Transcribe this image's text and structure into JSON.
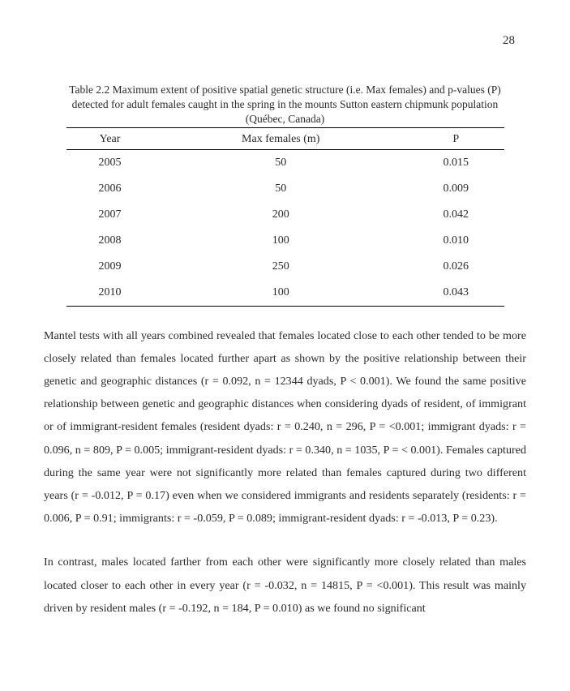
{
  "page_number": "28",
  "table": {
    "type": "table",
    "caption_line1": "Table 2.2 Maximum extent of positive spatial genetic structure (i.e. Max females) and p-values (P)",
    "caption_line2": "detected for adult females caught in the spring in the mounts Sutton eastern chipmunk population",
    "caption_line3": "(Québec, Canada)",
    "columns": [
      "Year",
      "Max females (m)",
      "P"
    ],
    "rows": [
      [
        "2005",
        "50",
        "0.015"
      ],
      [
        "2006",
        "50",
        "0.009"
      ],
      [
        "2007",
        "200",
        "0.042"
      ],
      [
        "2008",
        "100",
        "0.010"
      ],
      [
        "2009",
        "250",
        "0.026"
      ],
      [
        "2010",
        "100",
        "0.043"
      ]
    ],
    "column_align": [
      "center",
      "center",
      "center"
    ],
    "border_color": "#000000",
    "background_color": "#ffffff",
    "header_fontsize": 14,
    "cell_fontsize": 14
  },
  "paragraph1": "Mantel tests with all years combined revealed that females located close to each other tended to be more closely related than females located further apart as shown by the positive relationship between their genetic and geographic distances (r = 0.092, n = 12344 dyads, P < 0.001). We found the same positive relationship between genetic and geographic distances when considering dyads of resident, of immigrant or of immigrant-resident females (resident dyads: r = 0.240, n = 296, P = <0.001; immigrant dyads: r = 0.096, n = 809, P = 0.005; immigrant-resident dyads:  r = 0.340, n = 1035, P = < 0.001). Females captured during the same year were not significantly more related than females captured during two different years (r = -0.012, P = 0.17) even when we considered immigrants and residents separately (residents: r = 0.006, P = 0.91; immigrants: r = -0.059, P = 0.089; immigrant-resident dyads: r = -0.013, P = 0.23).",
  "paragraph2": "In contrast, males located farther from each other were significantly more closely related than males located closer to each other in every year (r = -0.032, n = 14815, P = <0.001). This result was mainly driven by resident males (r = -0.192, n = 184, P = 0.010) as we found no significant",
  "colors": {
    "text": "#2a2a2a",
    "background": "#ffffff",
    "rule": "#000000"
  },
  "typography": {
    "font_family": "Times New Roman",
    "body_fontsize_pt": 11,
    "caption_fontsize_pt": 10,
    "line_height": 2.0
  }
}
